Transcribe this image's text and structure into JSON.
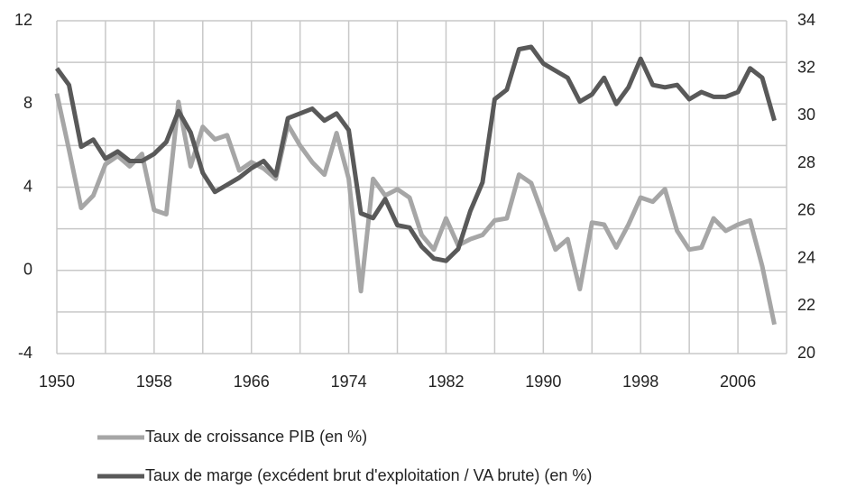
{
  "chart_data": {
    "type": "line",
    "x": [
      1950,
      1951,
      1952,
      1953,
      1954,
      1955,
      1956,
      1957,
      1958,
      1959,
      1960,
      1961,
      1962,
      1963,
      1964,
      1965,
      1966,
      1967,
      1968,
      1969,
      1970,
      1971,
      1972,
      1973,
      1974,
      1975,
      1976,
      1977,
      1978,
      1979,
      1980,
      1981,
      1982,
      1983,
      1984,
      1985,
      1986,
      1987,
      1988,
      1989,
      1990,
      1991,
      1992,
      1993,
      1994,
      1995,
      1996,
      1997,
      1998,
      1999,
      2000,
      2001,
      2002,
      2003,
      2004,
      2005,
      2006,
      2007,
      2008,
      2009
    ],
    "series": [
      {
        "name": "Taux de croissance PIB (en %)",
        "color": "#a6a6a6",
        "axis": "y",
        "values": [
          8.5,
          5.8,
          3.0,
          3.6,
          5.1,
          5.5,
          5.0,
          5.6,
          2.9,
          2.7,
          8.1,
          5.0,
          6.9,
          6.3,
          6.5,
          4.8,
          5.2,
          4.9,
          4.4,
          7.0,
          6.0,
          5.2,
          4.6,
          6.6,
          4.4,
          -1.0,
          4.4,
          3.6,
          3.9,
          3.5,
          1.7,
          1.0,
          2.5,
          1.2,
          1.5,
          1.7,
          2.4,
          2.5,
          4.6,
          4.2,
          2.6,
          1.0,
          1.5,
          -0.9,
          2.3,
          2.2,
          1.1,
          2.2,
          3.5,
          3.3,
          3.9,
          1.9,
          1.0,
          1.1,
          2.5,
          1.9,
          2.2,
          2.4,
          0.2,
          -2.6
        ]
      },
      {
        "name": "Taux de marge (excédent brut d'exploitation / VA brute) (en %)",
        "color": "#595959",
        "axis": "y2",
        "values": [
          32.0,
          31.3,
          28.7,
          29.0,
          28.2,
          28.5,
          28.1,
          28.1,
          28.4,
          28.9,
          30.2,
          29.3,
          27.6,
          26.8,
          27.1,
          27.4,
          27.8,
          28.1,
          27.5,
          29.9,
          30.1,
          30.3,
          29.8,
          30.1,
          29.4,
          25.9,
          25.7,
          26.5,
          25.4,
          25.3,
          24.5,
          24.0,
          23.9,
          24.4,
          26.0,
          27.2,
          30.7,
          31.1,
          32.8,
          32.9,
          32.2,
          31.9,
          31.6,
          30.6,
          30.9,
          31.6,
          30.5,
          31.2,
          32.4,
          31.3,
          31.2,
          31.3,
          30.7,
          31.0,
          30.8,
          30.8,
          31.0,
          32.0,
          31.6,
          29.8
        ]
      }
    ],
    "xlim": [
      1950,
      2010
    ],
    "xticks": [
      1950,
      1958,
      1966,
      1974,
      1982,
      1990,
      1998,
      2006
    ],
    "xminorticks": [
      1954,
      1962,
      1970,
      1978,
      1986,
      1994,
      2002,
      2010
    ],
    "ylim": [
      -4,
      12
    ],
    "yticks": [
      -4,
      0,
      4,
      8,
      12
    ],
    "yminorticks": [
      -2,
      2,
      6,
      10
    ],
    "y2lim": [
      20,
      34
    ],
    "y2ticks": [
      20,
      22,
      24,
      26,
      28,
      30,
      32,
      34
    ],
    "grid": true,
    "legend": "bottom"
  }
}
